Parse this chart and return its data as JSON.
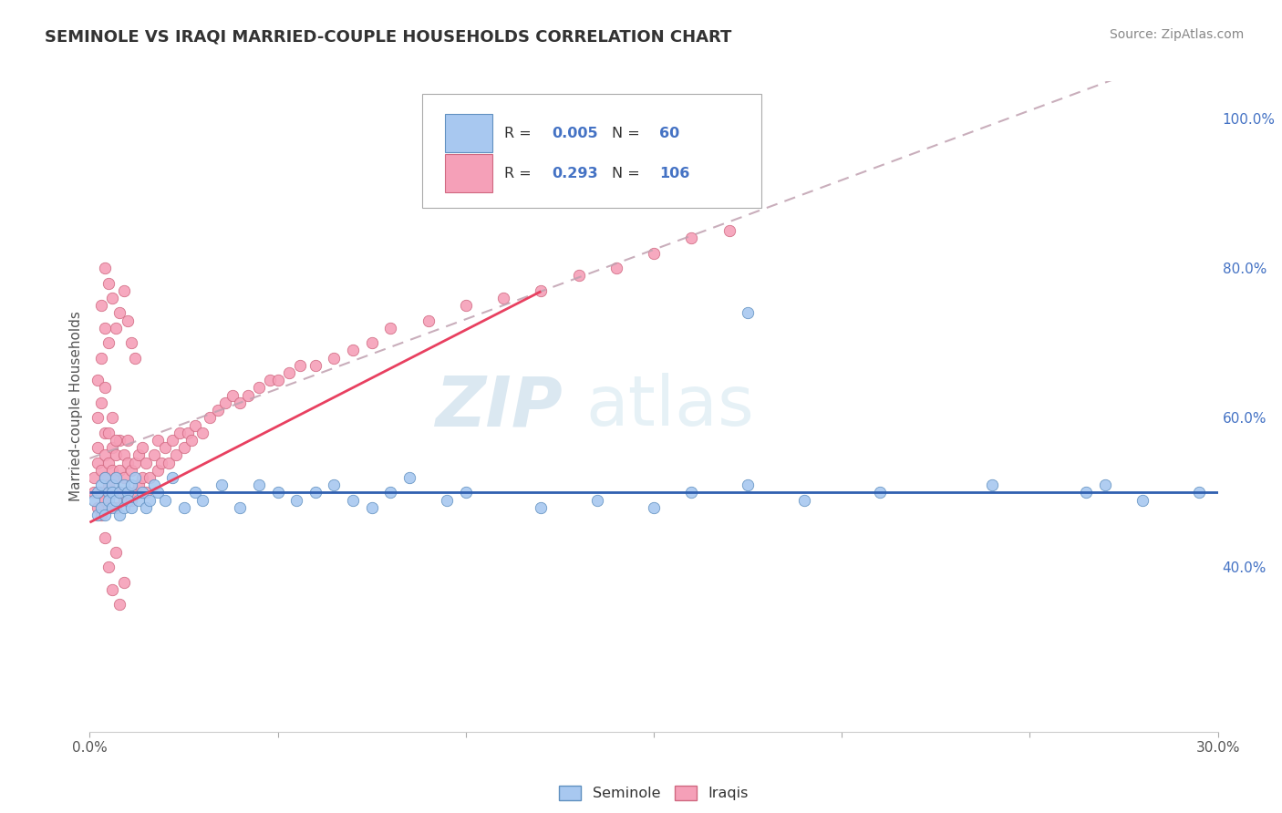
{
  "title": "SEMINOLE VS IRAQI MARRIED-COUPLE HOUSEHOLDS CORRELATION CHART",
  "source_text": "Source: ZipAtlas.com",
  "ylabel": "Married-couple Households",
  "ylabel_right_ticks": [
    "40.0%",
    "60.0%",
    "80.0%",
    "100.0%"
  ],
  "ylabel_right_positions": [
    0.4,
    0.6,
    0.8,
    1.0
  ],
  "legend_seminole_R": "0.005",
  "legend_seminole_N": "60",
  "legend_iraqi_R": "0.293",
  "legend_iraqi_N": "106",
  "seminole_color": "#a8c8f0",
  "iraqi_color": "#f5a0b8",
  "trendline_seminole_color": "#3060b0",
  "trendline_iraqi_color": "#e84060",
  "watermark_color": "#c8dff0",
  "xmin": 0.0,
  "xmax": 0.3,
  "ymin": 0.18,
  "ymax": 1.05,
  "seminole_x": [
    0.001,
    0.002,
    0.002,
    0.003,
    0.003,
    0.004,
    0.004,
    0.005,
    0.005,
    0.006,
    0.006,
    0.006,
    0.007,
    0.007,
    0.008,
    0.008,
    0.009,
    0.009,
    0.01,
    0.01,
    0.011,
    0.011,
    0.012,
    0.013,
    0.014,
    0.015,
    0.016,
    0.017,
    0.018,
    0.02,
    0.022,
    0.025,
    0.028,
    0.03,
    0.035,
    0.04,
    0.045,
    0.05,
    0.055,
    0.06,
    0.065,
    0.07,
    0.075,
    0.08,
    0.085,
    0.095,
    0.1,
    0.12,
    0.135,
    0.15,
    0.16,
    0.175,
    0.19,
    0.21,
    0.24,
    0.265,
    0.27,
    0.28,
    0.295,
    0.175
  ],
  "seminole_y": [
    0.49,
    0.5,
    0.47,
    0.51,
    0.48,
    0.52,
    0.47,
    0.5,
    0.49,
    0.51,
    0.48,
    0.5,
    0.52,
    0.49,
    0.5,
    0.47,
    0.51,
    0.48,
    0.5,
    0.49,
    0.51,
    0.48,
    0.52,
    0.49,
    0.5,
    0.48,
    0.49,
    0.51,
    0.5,
    0.49,
    0.52,
    0.48,
    0.5,
    0.49,
    0.51,
    0.48,
    0.51,
    0.5,
    0.49,
    0.5,
    0.51,
    0.49,
    0.48,
    0.5,
    0.52,
    0.49,
    0.5,
    0.48,
    0.49,
    0.48,
    0.5,
    0.51,
    0.49,
    0.5,
    0.51,
    0.5,
    0.51,
    0.49,
    0.5,
    0.74
  ],
  "iraqi_x": [
    0.001,
    0.001,
    0.002,
    0.002,
    0.002,
    0.003,
    0.003,
    0.003,
    0.004,
    0.004,
    0.004,
    0.004,
    0.005,
    0.005,
    0.005,
    0.006,
    0.006,
    0.006,
    0.007,
    0.007,
    0.007,
    0.008,
    0.008,
    0.008,
    0.009,
    0.009,
    0.009,
    0.01,
    0.01,
    0.01,
    0.011,
    0.011,
    0.012,
    0.012,
    0.013,
    0.013,
    0.014,
    0.014,
    0.015,
    0.015,
    0.016,
    0.017,
    0.018,
    0.018,
    0.019,
    0.02,
    0.021,
    0.022,
    0.023,
    0.024,
    0.025,
    0.026,
    0.027,
    0.028,
    0.03,
    0.032,
    0.034,
    0.036,
    0.038,
    0.04,
    0.042,
    0.045,
    0.048,
    0.05,
    0.053,
    0.056,
    0.06,
    0.065,
    0.07,
    0.075,
    0.08,
    0.09,
    0.1,
    0.11,
    0.12,
    0.13,
    0.14,
    0.15,
    0.16,
    0.17,
    0.003,
    0.004,
    0.005,
    0.006,
    0.007,
    0.008,
    0.009,
    0.01,
    0.011,
    0.012,
    0.002,
    0.003,
    0.004,
    0.005,
    0.002,
    0.003,
    0.004,
    0.005,
    0.006,
    0.007,
    0.004,
    0.005,
    0.006,
    0.007,
    0.008,
    0.009
  ],
  "iraqi_y": [
    0.5,
    0.52,
    0.48,
    0.54,
    0.56,
    0.47,
    0.5,
    0.53,
    0.49,
    0.55,
    0.52,
    0.58,
    0.48,
    0.51,
    0.54,
    0.5,
    0.53,
    0.56,
    0.48,
    0.52,
    0.55,
    0.5,
    0.53,
    0.57,
    0.49,
    0.52,
    0.55,
    0.5,
    0.54,
    0.57,
    0.49,
    0.53,
    0.5,
    0.54,
    0.51,
    0.55,
    0.52,
    0.56,
    0.5,
    0.54,
    0.52,
    0.55,
    0.53,
    0.57,
    0.54,
    0.56,
    0.54,
    0.57,
    0.55,
    0.58,
    0.56,
    0.58,
    0.57,
    0.59,
    0.58,
    0.6,
    0.61,
    0.62,
    0.63,
    0.62,
    0.63,
    0.64,
    0.65,
    0.65,
    0.66,
    0.67,
    0.67,
    0.68,
    0.69,
    0.7,
    0.72,
    0.73,
    0.75,
    0.76,
    0.77,
    0.79,
    0.8,
    0.82,
    0.84,
    0.85,
    0.75,
    0.8,
    0.78,
    0.76,
    0.72,
    0.74,
    0.77,
    0.73,
    0.7,
    0.68,
    0.65,
    0.68,
    0.72,
    0.7,
    0.6,
    0.62,
    0.64,
    0.58,
    0.6,
    0.57,
    0.44,
    0.4,
    0.37,
    0.42,
    0.35,
    0.38
  ]
}
